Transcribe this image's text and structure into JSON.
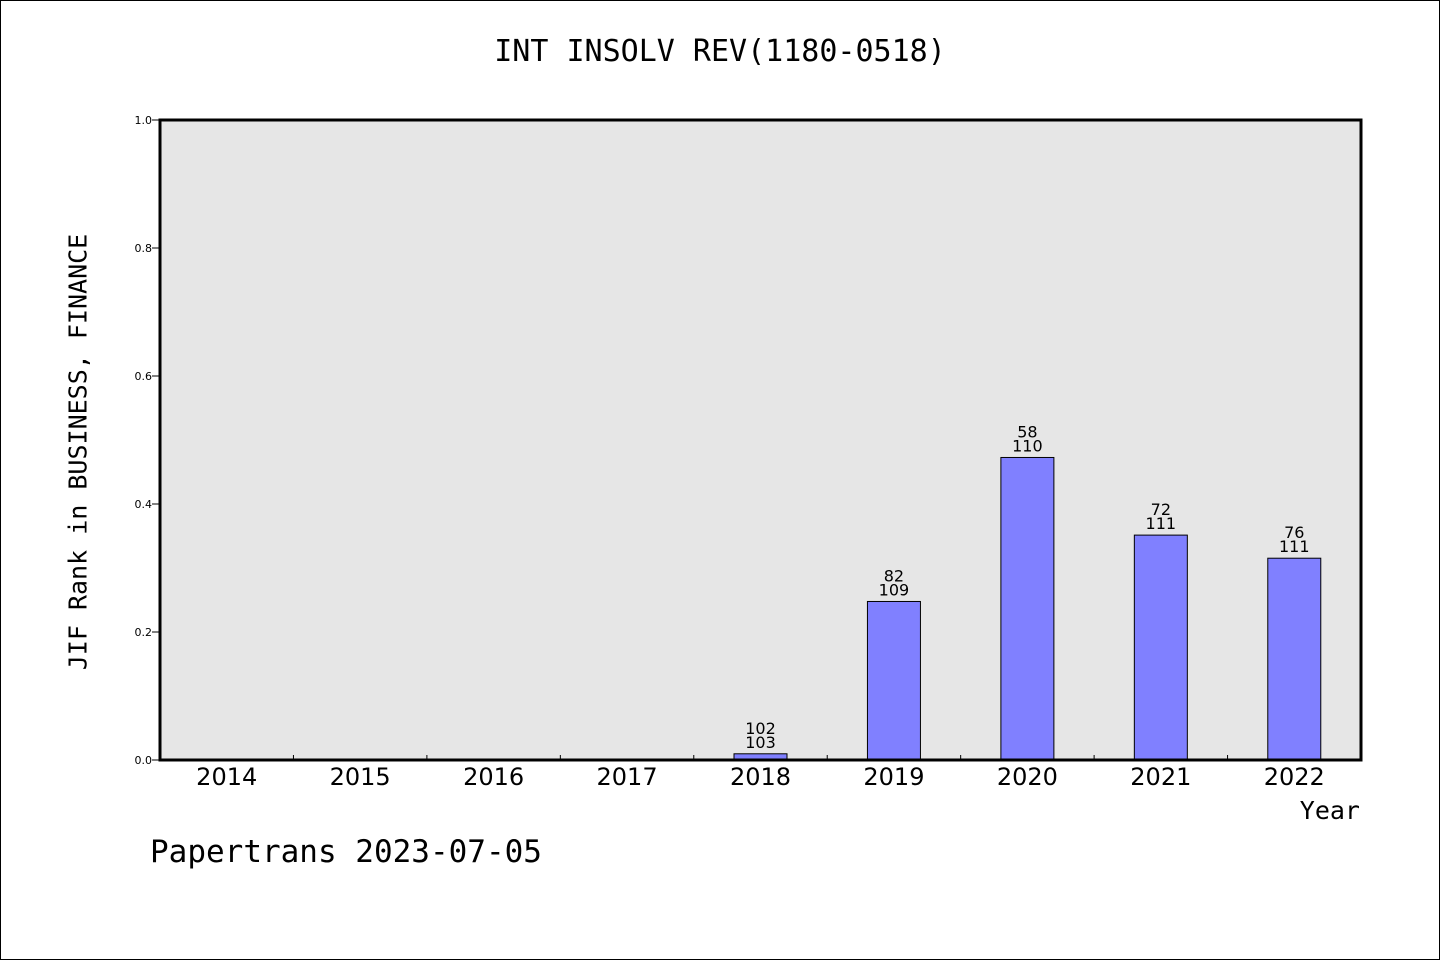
{
  "chart_data": {
    "type": "bar",
    "title": "INT INSOLV REV(1180-0518)",
    "xlabel": "Year",
    "ylabel": "JIF Rank in BUSINESS, FINANCE",
    "categories": [
      "2014",
      "2015",
      "2016",
      "2017",
      "2018",
      "2019",
      "2020",
      "2021",
      "2022"
    ],
    "values": [
      null,
      null,
      null,
      null,
      0.0097,
      0.2477,
      0.4727,
      0.3514,
      0.3153
    ],
    "rank": [
      null,
      null,
      null,
      null,
      "102",
      "82",
      "58",
      "72",
      "76"
    ],
    "total": [
      null,
      null,
      null,
      null,
      "103",
      "109",
      "110",
      "111",
      "111"
    ],
    "ylim": [
      0,
      1.0
    ],
    "yticks": [
      "0.0",
      "0.2",
      "0.4",
      "0.6",
      "0.8",
      "1.0"
    ],
    "ytick_values": [
      0,
      0.2,
      0.4,
      0.6,
      0.8,
      1.0
    ],
    "grid": false,
    "bar_color": "#8080ff",
    "plot_background": "#e6e6e6"
  },
  "footer": "Papertrans 2023-07-05"
}
